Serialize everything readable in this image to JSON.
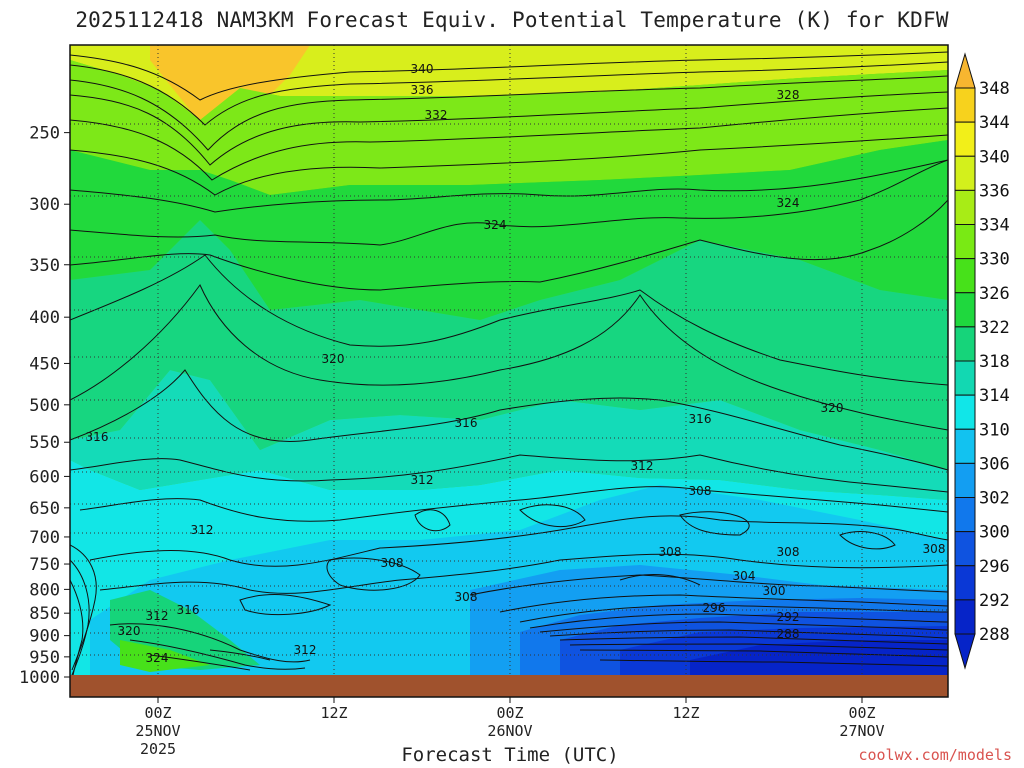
{
  "chart_data": {
    "type": "heatmap",
    "title": "2025112418 NAM3KM Forecast Equiv. Potential Temperature (K) for KDFW",
    "xlabel": "Forecast Time (UTC)",
    "ylabel": "",
    "y_scale": "log-pressure, inverted",
    "y_range_hPa": [
      1000,
      200
    ],
    "y_ticks": [
      "250",
      "300",
      "350",
      "400",
      "450",
      "500",
      "550",
      "600",
      "650",
      "700",
      "750",
      "800",
      "850",
      "900",
      "950",
      "1000"
    ],
    "x_ticks": [
      {
        "label": "00Z",
        "sub1": "25NOV",
        "sub2": "2025"
      },
      {
        "label": "12Z",
        "sub1": "",
        "sub2": ""
      },
      {
        "label": "00Z",
        "sub1": "26NOV",
        "sub2": ""
      },
      {
        "label": "12Z",
        "sub1": "",
        "sub2": ""
      },
      {
        "label": "00Z",
        "sub1": "27NOV",
        "sub2": ""
      }
    ],
    "colorbar": {
      "levels": [
        "348",
        "344",
        "340",
        "336",
        "334",
        "330",
        "326",
        "322",
        "318",
        "314",
        "310",
        "306",
        "302",
        "300",
        "296",
        "292",
        "288"
      ],
      "colors": [
        "#f7b630",
        "#f7d21d",
        "#f2ef19",
        "#d3f01c",
        "#a8ec16",
        "#79ea14",
        "#47e11a",
        "#1fd83e",
        "#16d47a",
        "#12d8b2",
        "#11e6e8",
        "#12c2f0",
        "#139ef2",
        "#1178ec",
        "#0f53e0",
        "#0a38d6",
        "#0624c8"
      ]
    },
    "contour_labels": [
      "340",
      "336",
      "332",
      "328",
      "324",
      "324",
      "320",
      "320",
      "316",
      "316",
      "316",
      "312",
      "312",
      "312",
      "308",
      "308",
      "308",
      "308",
      "308",
      "308",
      "304",
      "300",
      "296",
      "292",
      "288",
      "316",
      "312",
      "320",
      "324",
      "312"
    ],
    "gridlines": "dotted at each labeled pressure level and each labeled time"
  },
  "credit": "coolwx.com/models"
}
